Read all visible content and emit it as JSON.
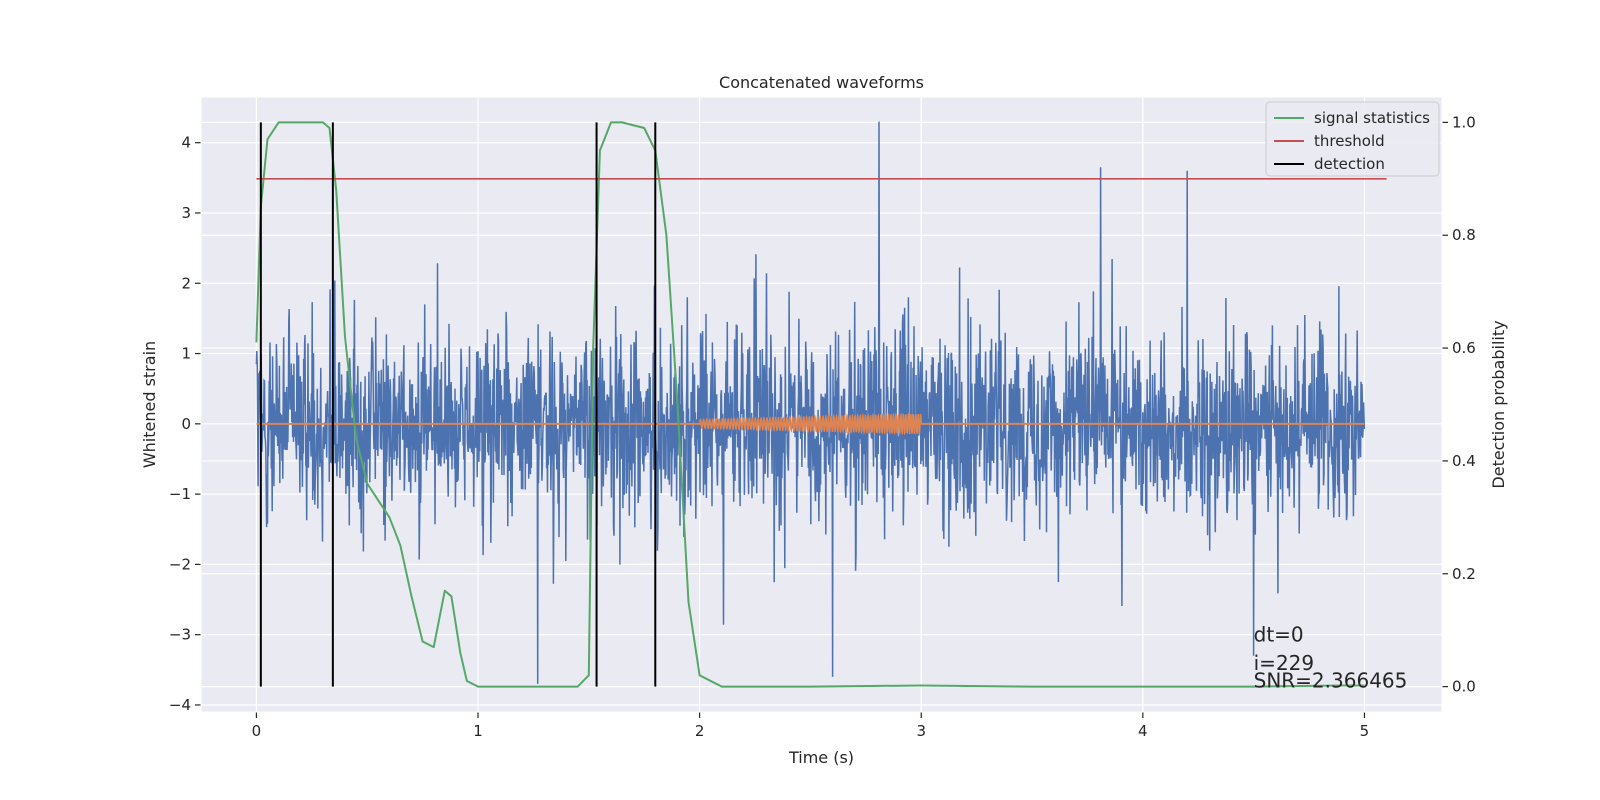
{
  "chart_data": {
    "type": "line",
    "title": "Concatenated waveforms",
    "xlabel": "Time (s)",
    "ylabel": "Whitened strain",
    "y2label": "Detection probability",
    "xlim": [
      -0.25,
      5.35
    ],
    "ylim": [
      -4.1,
      4.65
    ],
    "y2lim": [
      -0.045,
      1.045
    ],
    "xticks": [
      0,
      1,
      2,
      3,
      4,
      5
    ],
    "yticks": [
      -4,
      -3,
      -2,
      -1,
      0,
      1,
      2,
      3,
      4
    ],
    "y2ticks": [
      0.0,
      0.2,
      0.4,
      0.6,
      0.8,
      1.0
    ],
    "grid": true,
    "legend_placement": "top-right",
    "style": {
      "background": "#eaeaf2",
      "grid_color": "#ffffff"
    },
    "series": [
      {
        "name": "",
        "kind": "noise",
        "axis": "left",
        "color": "#4c72b0",
        "x_range": [
          0,
          5
        ],
        "typical_amplitude": 2.2,
        "peaks": [
          {
            "x": 2.81,
            "y": 4.3
          },
          {
            "x": 3.81,
            "y": 3.65
          },
          {
            "x": 4.2,
            "y": 3.6
          },
          {
            "x": 1.27,
            "y": -3.7
          },
          {
            "x": 2.6,
            "y": -3.6
          },
          {
            "x": 4.5,
            "y": -3.3
          }
        ]
      },
      {
        "name": "",
        "kind": "chirp",
        "axis": "left",
        "color": "#dd8452",
        "x_range": [
          2.0,
          3.0
        ],
        "amplitude_range": [
          0.06,
          0.14
        ]
      },
      {
        "name": "signal statistics",
        "axis": "right",
        "color": "#55a868",
        "x": [
          0,
          0.02,
          0.05,
          0.1,
          0.3,
          0.33,
          0.36,
          0.4,
          0.45,
          0.5,
          0.55,
          0.6,
          0.65,
          0.7,
          0.75,
          0.8,
          0.85,
          0.88,
          0.92,
          0.95,
          1.0,
          1.1,
          1.3,
          1.45,
          1.5,
          1.52,
          1.55,
          1.6,
          1.65,
          1.75,
          1.8,
          1.85,
          1.9,
          1.95,
          2.0,
          2.1,
          2.5,
          3.0,
          3.5,
          4.0,
          4.5,
          4.9,
          5.0
        ],
        "values": [
          0.61,
          0.85,
          0.97,
          1.0,
          1.0,
          0.99,
          0.88,
          0.62,
          0.44,
          0.36,
          0.33,
          0.3,
          0.25,
          0.16,
          0.08,
          0.07,
          0.17,
          0.16,
          0.06,
          0.01,
          0.0,
          0.0,
          0.0,
          0.0,
          0.02,
          0.6,
          0.95,
          1.0,
          1.0,
          0.99,
          0.95,
          0.8,
          0.5,
          0.15,
          0.02,
          0.0,
          0.0,
          0.002,
          0.0,
          0.0,
          0.0,
          0.002,
          0.002
        ]
      },
      {
        "name": "threshold",
        "axis": "right",
        "color": "#c44e52",
        "x": [
          0,
          5.1
        ],
        "values": [
          0.9,
          0.9
        ]
      },
      {
        "name": "detection",
        "axis": "right",
        "color": "#000000",
        "vlines": [
          0.02,
          0.345,
          1.535,
          1.8
        ],
        "vline_range": [
          0.0,
          1.0
        ]
      }
    ],
    "annotations": [
      {
        "text": "dt=0",
        "x": 4.5,
        "y": -3.0
      },
      {
        "text": "i=229",
        "x": 4.5,
        "y": -3.4
      },
      {
        "text": "SNR=2.366465",
        "x": 4.5,
        "y": -3.65
      }
    ]
  }
}
